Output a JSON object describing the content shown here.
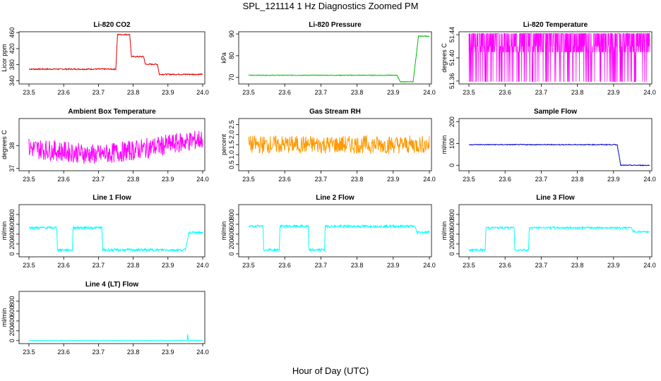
{
  "title": "SPL_121114  1 Hz Diagnostics Zoomed PM",
  "xlabel": "Hour of Day (UTC)",
  "chart_data": [
    {
      "type": "line",
      "title": "Li-820 CO2",
      "ylabel": "Licor ppm",
      "color": "#dd0000",
      "xlim": [
        23.5,
        24.0
      ],
      "xticks": [
        23.5,
        23.6,
        23.7,
        23.8,
        23.9,
        24.0
      ],
      "ylim": [
        332,
        462
      ],
      "yticks": [
        340,
        380,
        420,
        460
      ],
      "segments": [
        [
          23.5,
          369
        ],
        [
          23.75,
          369
        ],
        [
          23.755,
          455
        ],
        [
          23.79,
          455
        ],
        [
          23.795,
          400
        ],
        [
          23.83,
          400
        ],
        [
          23.835,
          381
        ],
        [
          23.87,
          381
        ],
        [
          23.875,
          356
        ],
        [
          23.95,
          356
        ],
        [
          24.0,
          356
        ]
      ],
      "noise": 1.5
    },
    {
      "type": "line",
      "title": "Li-820 Pressure",
      "ylabel": "kPa",
      "color": "#00bb00",
      "xlim": [
        23.5,
        24.0
      ],
      "xticks": [
        23.5,
        23.6,
        23.7,
        23.8,
        23.9,
        24.0
      ],
      "ylim": [
        67,
        91
      ],
      "yticks": [
        70,
        80,
        90
      ],
      "segments": [
        [
          23.5,
          71
        ],
        [
          23.91,
          71
        ],
        [
          23.92,
          68
        ],
        [
          23.955,
          68
        ],
        [
          23.97,
          89
        ],
        [
          24.0,
          89
        ]
      ],
      "noise": 0.15
    },
    {
      "type": "line",
      "title": "Li-820 Temperature",
      "ylabel": "degrees C",
      "color": "#ff00ff",
      "xlim": [
        23.5,
        24.0
      ],
      "xticks": [
        23.5,
        23.6,
        23.7,
        23.8,
        23.9,
        24.0
      ],
      "ylim": [
        51.355,
        51.445
      ],
      "yticks": [
        51.36,
        51.4,
        51.44
      ],
      "segments": [
        [
          23.5,
          51.41
        ],
        [
          24.0,
          51.41
        ]
      ],
      "noise": 0.03,
      "band": true
    },
    {
      "type": "line",
      "title": "Ambient Box Temperature",
      "ylabel": "degrees C",
      "color": "#ff00ff",
      "xlim": [
        23.5,
        24.0
      ],
      "xticks": [
        23.5,
        23.6,
        23.7,
        23.8,
        23.9,
        24.0
      ],
      "ylim": [
        36.9,
        39.2
      ],
      "yticks": [
        37.0,
        38.0
      ],
      "segments": [
        [
          23.5,
          37.9
        ],
        [
          23.7,
          37.6
        ],
        [
          23.8,
          37.8
        ],
        [
          24.0,
          38.3
        ]
      ],
      "noise": 0.45
    },
    {
      "type": "line",
      "title": "Gas Stream RH",
      "ylabel": "percent",
      "color": "#ff9900",
      "xlim": [
        23.5,
        24.0
      ],
      "xticks": [
        23.5,
        23.6,
        23.7,
        23.8,
        23.9,
        24.0
      ],
      "ylim": [
        0.2,
        2.8
      ],
      "yticks": [
        0.5,
        1.0,
        1.5,
        2.0,
        2.5
      ],
      "segments": [
        [
          23.5,
          1.5
        ],
        [
          24.0,
          1.5
        ]
      ],
      "noise": 0.45
    },
    {
      "type": "line",
      "title": "Sample Flow",
      "ylabel": "ml/min",
      "color": "#0000cc",
      "xlim": [
        23.5,
        24.0
      ],
      "xticks": [
        23.5,
        23.6,
        23.7,
        23.8,
        23.9,
        24.0
      ],
      "ylim": [
        -25,
        215
      ],
      "yticks": [
        0,
        100,
        200
      ],
      "segments": [
        [
          23.5,
          95
        ],
        [
          23.91,
          95
        ],
        [
          23.92,
          0
        ],
        [
          24.0,
          0
        ]
      ],
      "noise": 2
    },
    {
      "type": "line",
      "title": "Line 1 Flow",
      "ylabel": "ml/min",
      "color": "#00ffff",
      "xlim": [
        23.5,
        24.0
      ],
      "xticks": [
        23.5,
        23.6,
        23.7,
        23.8,
        23.9,
        24.0
      ],
      "ylim": [
        -60,
        1000
      ],
      "yticks": [
        0,
        200,
        400,
        600,
        800
      ],
      "segments": [
        [
          23.5,
          530
        ],
        [
          23.58,
          530
        ],
        [
          23.582,
          80
        ],
        [
          23.625,
          80
        ],
        [
          23.627,
          530
        ],
        [
          23.71,
          530
        ],
        [
          23.712,
          80
        ],
        [
          23.95,
          80
        ],
        [
          23.96,
          430
        ],
        [
          24.0,
          430
        ]
      ],
      "noise": 25
    },
    {
      "type": "line",
      "title": "Line 2 Flow",
      "ylabel": "ml/min",
      "color": "#00ffff",
      "xlim": [
        23.5,
        24.0
      ],
      "xticks": [
        23.5,
        23.6,
        23.7,
        23.8,
        23.9,
        24.0
      ],
      "ylim": [
        -60,
        1000
      ],
      "yticks": [
        0,
        200,
        400,
        600,
        800
      ],
      "segments": [
        [
          23.5,
          560
        ],
        [
          23.54,
          560
        ],
        [
          23.542,
          80
        ],
        [
          23.585,
          80
        ],
        [
          23.587,
          560
        ],
        [
          23.665,
          560
        ],
        [
          23.667,
          80
        ],
        [
          23.71,
          80
        ],
        [
          23.712,
          560
        ],
        [
          23.96,
          560
        ],
        [
          23.965,
          440
        ],
        [
          24.0,
          440
        ]
      ],
      "noise": 25
    },
    {
      "type": "line",
      "title": "Line 3 Flow",
      "ylabel": "ml/min",
      "color": "#00ffff",
      "xlim": [
        23.5,
        24.0
      ],
      "xticks": [
        23.5,
        23.6,
        23.7,
        23.8,
        23.9,
        24.0
      ],
      "ylim": [
        -60,
        1000
      ],
      "yticks": [
        0,
        200,
        400,
        600,
        800
      ],
      "segments": [
        [
          23.5,
          80
        ],
        [
          23.545,
          80
        ],
        [
          23.547,
          530
        ],
        [
          23.625,
          530
        ],
        [
          23.627,
          80
        ],
        [
          23.665,
          80
        ],
        [
          23.667,
          530
        ],
        [
          23.95,
          530
        ],
        [
          23.955,
          450
        ],
        [
          24.0,
          450
        ]
      ],
      "noise": 20
    },
    {
      "type": "line",
      "title": "Line 4 (LT) Flow",
      "ylabel": "ml/min",
      "color": "#00ffff",
      "xlim": [
        23.5,
        24.0
      ],
      "xticks": [
        23.5,
        23.6,
        23.7,
        23.8,
        23.9,
        24.0
      ],
      "ylim": [
        -60,
        1000
      ],
      "yticks": [
        0,
        200,
        400,
        600,
        800
      ],
      "segments": [
        [
          23.5,
          5
        ],
        [
          23.955,
          5
        ],
        [
          23.957,
          130
        ],
        [
          23.959,
          5
        ],
        [
          24.0,
          5
        ]
      ],
      "noise": 2
    }
  ]
}
